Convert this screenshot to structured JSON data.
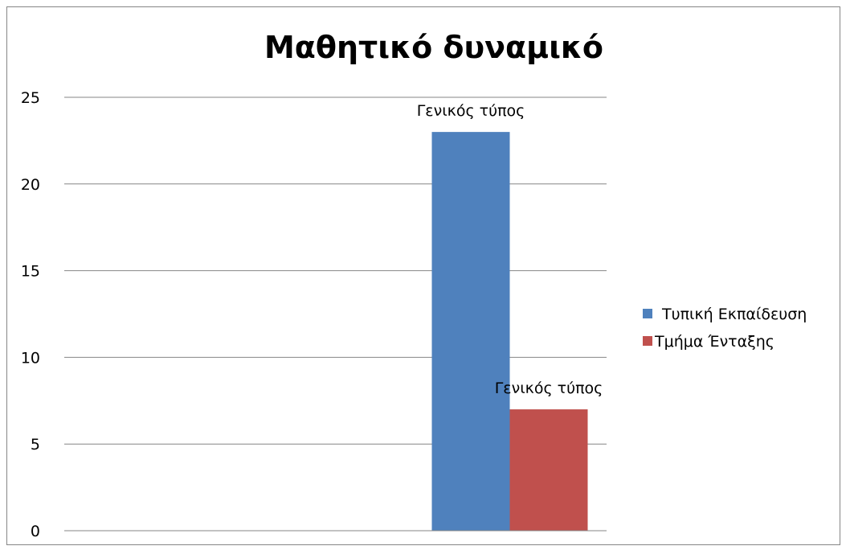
{
  "chart_data": {
    "type": "bar",
    "title": "Μαθητικό δυναμικό",
    "xlabel": "",
    "ylabel": "",
    "categories": [
      ""
    ],
    "series": [
      {
        "name": "Τυπική Εκπαίδευση",
        "color": "#4f81bd",
        "values": [
          23
        ],
        "data_label": "Γενικός τύπος"
      },
      {
        "name": "Τμήμα Ένταξης",
        "color": "#c0504d",
        "values": [
          7
        ],
        "data_label": "Γενικός τύπος"
      }
    ],
    "ylim": [
      0,
      25
    ],
    "yticks": [
      "0",
      "5",
      "10",
      "15",
      "20",
      "25"
    ],
    "grid": true,
    "legend_position": "right"
  }
}
